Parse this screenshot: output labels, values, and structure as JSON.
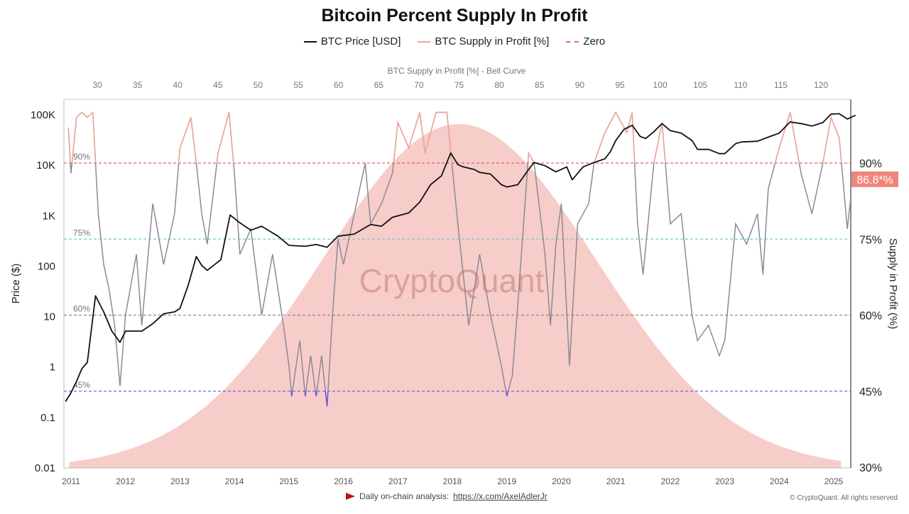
{
  "chart_data": {
    "type": "line",
    "title": "Bitcoin Percent Supply In Profit",
    "legend": {
      "placement": "top-center",
      "entries": [
        {
          "label": "BTC Price [USD]",
          "color": "#111111"
        },
        {
          "label": "BTC Supply in Profit [%]",
          "color": "#f4a49a"
        },
        {
          "label": "Zero",
          "color": "#e0609a",
          "dash": true
        }
      ]
    },
    "ylabel_left": "Price ($)",
    "ylabel_right": "Supply in Profit (%)",
    "xlabel_top": "BTC Supply in Profit [%] - Bell Curve",
    "left_axis": {
      "scale": "log",
      "range": [
        0.01,
        100000
      ],
      "ticks": [
        "0.01",
        "0.1",
        "1",
        "10",
        "100",
        "1K",
        "10K",
        "100K"
      ]
    },
    "right_axis": {
      "range": [
        30,
        100
      ],
      "ticks": [
        "30%",
        "45%",
        "60%",
        "75%",
        "90%"
      ]
    },
    "top_axis": {
      "range": [
        26,
        123
      ],
      "ticks": [
        30,
        35,
        40,
        45,
        50,
        55,
        60,
        65,
        70,
        75,
        80,
        85,
        90,
        95,
        100,
        105,
        110,
        115,
        120
      ]
    },
    "x_axis": {
      "range": [
        2010.9,
        2025.4
      ],
      "ticks": [
        "2011",
        "2012",
        "2013",
        "2014",
        "2015",
        "2016",
        "2017",
        "2018",
        "2019",
        "2020",
        "2021",
        "2022",
        "2023",
        "2024",
        "2025"
      ]
    },
    "reference_lines": [
      {
        "value": 90,
        "label": "90%",
        "color": "#e06060"
      },
      {
        "value": 75,
        "label": "75%",
        "color": "#7cc8d8"
      },
      {
        "value": 60,
        "label": "60%",
        "color": "#888888"
      },
      {
        "value": 45,
        "label": "45%",
        "color": "#6a6ae0"
      }
    ],
    "current_value_label": "86.8*%",
    "current_value_color": "#f0857a",
    "bell_curve": {
      "mean": 75,
      "sigma": 17,
      "color": "#f6c4bf"
    },
    "watermark": "CryptoQuant",
    "series": [
      {
        "name": "BTC Price [USD]",
        "axis": "left",
        "points": [
          [
            2010.9,
            0.2
          ],
          [
            2011.0,
            0.3
          ],
          [
            2011.1,
            0.5
          ],
          [
            2011.2,
            0.9
          ],
          [
            2011.3,
            1.2
          ],
          [
            2011.45,
            25
          ],
          [
            2011.6,
            12
          ],
          [
            2011.75,
            5
          ],
          [
            2011.9,
            3
          ],
          [
            2012.0,
            5
          ],
          [
            2012.3,
            5
          ],
          [
            2012.5,
            7
          ],
          [
            2012.7,
            11
          ],
          [
            2012.9,
            12
          ],
          [
            2013.0,
            14
          ],
          [
            2013.15,
            40
          ],
          [
            2013.3,
            150
          ],
          [
            2013.4,
            100
          ],
          [
            2013.5,
            80
          ],
          [
            2013.75,
            130
          ],
          [
            2013.92,
            1000
          ],
          [
            2014.1,
            700
          ],
          [
            2014.3,
            500
          ],
          [
            2014.5,
            600
          ],
          [
            2014.8,
            380
          ],
          [
            2015.0,
            250
          ],
          [
            2015.3,
            240
          ],
          [
            2015.5,
            260
          ],
          [
            2015.7,
            230
          ],
          [
            2015.9,
            380
          ],
          [
            2016.2,
            420
          ],
          [
            2016.5,
            650
          ],
          [
            2016.7,
            600
          ],
          [
            2016.9,
            900
          ],
          [
            2017.2,
            1100
          ],
          [
            2017.4,
            1800
          ],
          [
            2017.6,
            4000
          ],
          [
            2017.8,
            6000
          ],
          [
            2017.97,
            17000
          ],
          [
            2018.1,
            10000
          ],
          [
            2018.2,
            9000
          ],
          [
            2018.4,
            8000
          ],
          [
            2018.5,
            7000
          ],
          [
            2018.7,
            6500
          ],
          [
            2018.9,
            4000
          ],
          [
            2019.0,
            3600
          ],
          [
            2019.2,
            4000
          ],
          [
            2019.4,
            8000
          ],
          [
            2019.5,
            11000
          ],
          [
            2019.7,
            9500
          ],
          [
            2019.9,
            7200
          ],
          [
            2020.1,
            9000
          ],
          [
            2020.2,
            5000
          ],
          [
            2020.4,
            9000
          ],
          [
            2020.6,
            11000
          ],
          [
            2020.8,
            13000
          ],
          [
            2020.9,
            18000
          ],
          [
            2021.0,
            30000
          ],
          [
            2021.15,
            50000
          ],
          [
            2021.3,
            60000
          ],
          [
            2021.45,
            36000
          ],
          [
            2021.55,
            33000
          ],
          [
            2021.7,
            45000
          ],
          [
            2021.85,
            65000
          ],
          [
            2022.0,
            47000
          ],
          [
            2022.2,
            42000
          ],
          [
            2022.4,
            30000
          ],
          [
            2022.5,
            20000
          ],
          [
            2022.7,
            20000
          ],
          [
            2022.9,
            16500
          ],
          [
            2023.0,
            16500
          ],
          [
            2023.2,
            26000
          ],
          [
            2023.3,
            28000
          ],
          [
            2023.6,
            29000
          ],
          [
            2023.8,
            35000
          ],
          [
            2024.0,
            42000
          ],
          [
            2024.2,
            70000
          ],
          [
            2024.4,
            65000
          ],
          [
            2024.6,
            58000
          ],
          [
            2024.8,
            68000
          ],
          [
            2024.95,
            100000
          ],
          [
            2025.1,
            102000
          ],
          [
            2025.25,
            80000
          ],
          [
            2025.4,
            95000
          ]
        ]
      },
      {
        "name": "BTC Supply in Profit [%]",
        "axis": "right",
        "points": [
          [
            2010.95,
            97
          ],
          [
            2011.0,
            88
          ],
          [
            2011.1,
            99
          ],
          [
            2011.2,
            100
          ],
          [
            2011.3,
            99
          ],
          [
            2011.4,
            100
          ],
          [
            2011.5,
            80
          ],
          [
            2011.6,
            70
          ],
          [
            2011.7,
            65
          ],
          [
            2011.8,
            58
          ],
          [
            2011.9,
            46
          ],
          [
            2012.0,
            60
          ],
          [
            2012.2,
            72
          ],
          [
            2012.3,
            58
          ],
          [
            2012.5,
            82
          ],
          [
            2012.7,
            70
          ],
          [
            2012.9,
            80
          ],
          [
            2013.0,
            93
          ],
          [
            2013.2,
            99
          ],
          [
            2013.3,
            90
          ],
          [
            2013.4,
            80
          ],
          [
            2013.5,
            74
          ],
          [
            2013.7,
            92
          ],
          [
            2013.9,
            100
          ],
          [
            2014.0,
            88
          ],
          [
            2014.1,
            72
          ],
          [
            2014.3,
            77
          ],
          [
            2014.5,
            60
          ],
          [
            2014.7,
            72
          ],
          [
            2014.9,
            58
          ],
          [
            2015.0,
            50
          ],
          [
            2015.05,
            44
          ],
          [
            2015.2,
            55
          ],
          [
            2015.3,
            44
          ],
          [
            2015.4,
            52
          ],
          [
            2015.5,
            44
          ],
          [
            2015.6,
            52
          ],
          [
            2015.7,
            42
          ],
          [
            2015.8,
            60
          ],
          [
            2015.9,
            75
          ],
          [
            2016.0,
            70
          ],
          [
            2016.2,
            80
          ],
          [
            2016.4,
            90
          ],
          [
            2016.5,
            78
          ],
          [
            2016.7,
            82
          ],
          [
            2016.9,
            88
          ],
          [
            2017.0,
            98
          ],
          [
            2017.2,
            93
          ],
          [
            2017.4,
            100
          ],
          [
            2017.5,
            92
          ],
          [
            2017.7,
            100
          ],
          [
            2017.9,
            100
          ],
          [
            2018.1,
            78
          ],
          [
            2018.3,
            58
          ],
          [
            2018.5,
            72
          ],
          [
            2018.7,
            60
          ],
          [
            2018.9,
            50
          ],
          [
            2019.0,
            44
          ],
          [
            2019.1,
            48
          ],
          [
            2019.2,
            62
          ],
          [
            2019.4,
            92
          ],
          [
            2019.5,
            90
          ],
          [
            2019.7,
            72
          ],
          [
            2019.8,
            58
          ],
          [
            2019.9,
            74
          ],
          [
            2020.0,
            82
          ],
          [
            2020.15,
            50
          ],
          [
            2020.3,
            78
          ],
          [
            2020.5,
            82
          ],
          [
            2020.6,
            90
          ],
          [
            2020.8,
            96
          ],
          [
            2021.0,
            100
          ],
          [
            2021.2,
            96
          ],
          [
            2021.3,
            100
          ],
          [
            2021.4,
            78
          ],
          [
            2021.5,
            68
          ],
          [
            2021.7,
            90
          ],
          [
            2021.85,
            98
          ],
          [
            2022.0,
            78
          ],
          [
            2022.2,
            80
          ],
          [
            2022.4,
            60
          ],
          [
            2022.5,
            55
          ],
          [
            2022.7,
            58
          ],
          [
            2022.9,
            52
          ],
          [
            2023.0,
            55
          ],
          [
            2023.2,
            78
          ],
          [
            2023.4,
            74
          ],
          [
            2023.6,
            80
          ],
          [
            2023.7,
            68
          ],
          [
            2023.8,
            85
          ],
          [
            2024.0,
            93
          ],
          [
            2024.2,
            100
          ],
          [
            2024.4,
            88
          ],
          [
            2024.6,
            80
          ],
          [
            2024.8,
            90
          ],
          [
            2024.95,
            99
          ],
          [
            2025.1,
            95
          ],
          [
            2025.25,
            77
          ],
          [
            2025.35,
            86.8
          ]
        ]
      }
    ]
  },
  "footer": {
    "text": "Daily on-chain analysis:",
    "link": "https://x.com/AxelAdlerJr",
    "copyright": "© CryptoQuant. All rights reserved"
  }
}
